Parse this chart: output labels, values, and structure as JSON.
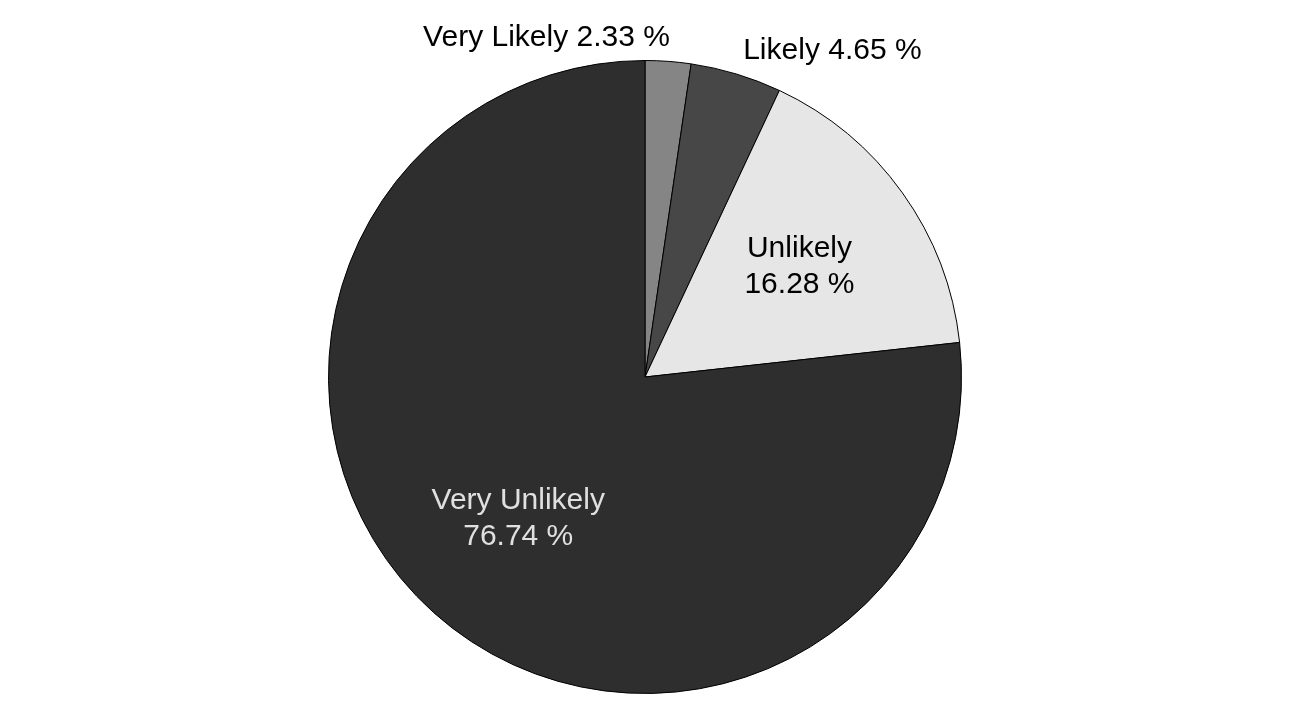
{
  "chart_data": {
    "type": "pie",
    "categories": [
      "Very Likely",
      "Likely",
      "Unlikely",
      "Very Unlikely"
    ],
    "values": [
      2.33,
      4.65,
      16.28,
      76.74
    ],
    "value_labels": [
      "2.33 %",
      "4.65 %",
      "16.28 %",
      "76.74 %"
    ],
    "colors": [
      "#858585",
      "#474747",
      "#e6e6e6",
      "#2e2e2e"
    ]
  }
}
